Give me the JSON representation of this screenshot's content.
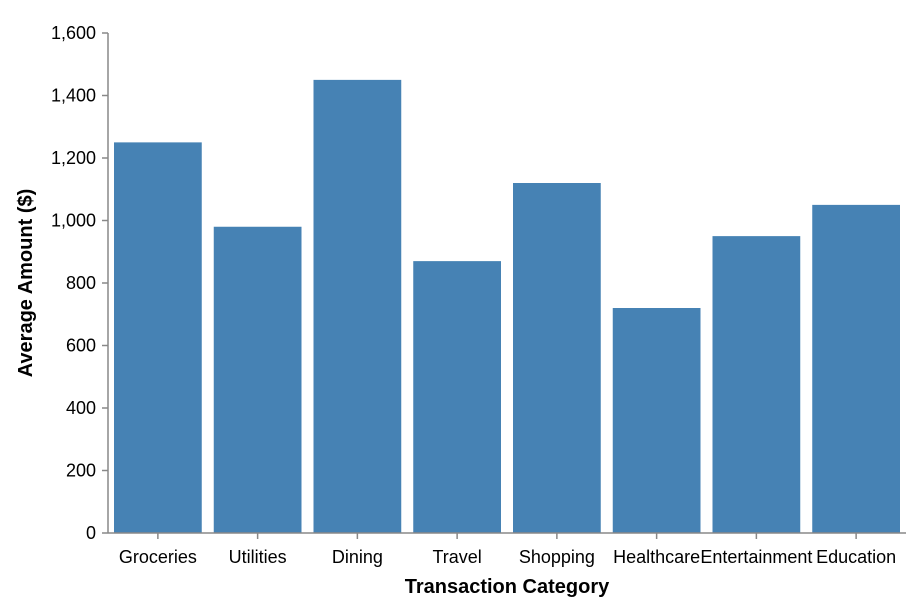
{
  "chart_data": {
    "type": "bar",
    "categories": [
      "Groceries",
      "Utilities",
      "Dining",
      "Travel",
      "Shopping",
      "Healthcare",
      "Entertainment",
      "Education"
    ],
    "values": [
      1250,
      980,
      1450,
      870,
      1120,
      720,
      950,
      1050
    ],
    "title": "",
    "xlabel": "Transaction Category",
    "ylabel": "Average Amount ($)",
    "ylim": [
      0,
      1600
    ],
    "yticks": [
      0,
      200,
      400,
      600,
      800,
      1000,
      1200,
      1400,
      1600
    ],
    "ytick_labels": [
      "0",
      "200",
      "400",
      "600",
      "800",
      "1,000",
      "1,200",
      "1,400",
      "1,600"
    ],
    "bar_color": "#4682b4",
    "grid": false
  }
}
